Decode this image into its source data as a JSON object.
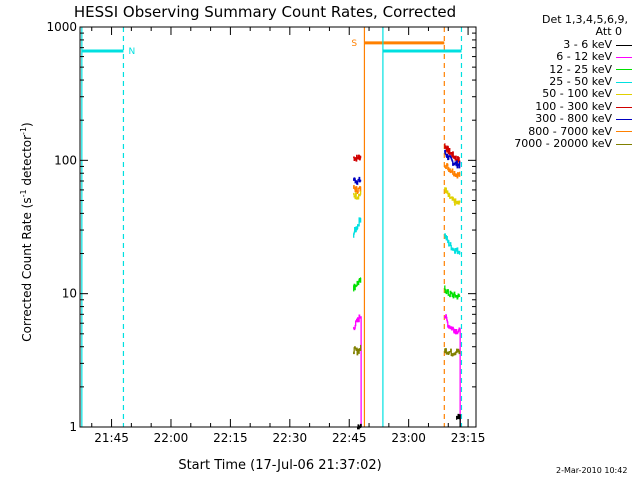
{
  "chart_data": {
    "type": "line",
    "title": "HESSI Observing Summary Count Rates, Corrected",
    "xlabel": "Start Time (17-Jul-06 21:37:02)",
    "ylabel": "Corrected Count Rate (s⁻¹ detector⁻¹)",
    "ylabel_parts": {
      "main": "Corrected Count Rate (s",
      "exp1": "-1",
      "mid": " detector",
      "exp2": "-1",
      "end": ")"
    },
    "x_scale": "time",
    "xlim": [
      "21:37:02",
      "23:17:00"
    ],
    "x_ticks": [
      "21:45",
      "22:00",
      "22:15",
      "22:30",
      "22:45",
      "23:00",
      "23:15"
    ],
    "y_scale": "log",
    "ylim": [
      1,
      1000
    ],
    "y_ticks": [
      "1",
      "10",
      "100",
      "1000"
    ],
    "legend": {
      "placement": "top-right, outside plot",
      "header": [
        "Det 1,3,4,5,6,9,",
        "Att 0"
      ],
      "entries": [
        {
          "label": "3 - 6 keV",
          "color": "#000000"
        },
        {
          "label": "6 - 12 keV",
          "color": "#ff00ff"
        },
        {
          "label": "12 - 25 keV",
          "color": "#00e000"
        },
        {
          "label": "25 - 50 keV",
          "color": "#00e0e0"
        },
        {
          "label": "50 - 100 keV",
          "color": "#e0d000"
        },
        {
          "label": "100 - 300 keV",
          "color": "#d00000"
        },
        {
          "label": "300 - 800 keV",
          "color": "#0000c0"
        },
        {
          "label": "800 - 7000 keV",
          "color": "#ff8000"
        },
        {
          "label": "7000 - 20000 keV",
          "color": "#808000"
        }
      ]
    },
    "series": [
      {
        "name": "100 - 300 keV",
        "color": "#d00000",
        "segments": [
          {
            "x": [
              "22:46",
              "22:47",
              "22:48"
            ],
            "y": [
              105,
              104,
              108
            ]
          },
          {
            "x": [
              "23:09",
              "23:10",
              "23:11",
              "23:12",
              "23:13"
            ],
            "y": [
              130,
              118,
              110,
              103,
              98
            ]
          }
        ]
      },
      {
        "name": "300 - 800 keV",
        "color": "#0000c0",
        "segments": [
          {
            "x": [
              "22:46",
              "22:47",
              "22:48"
            ],
            "y": [
              72,
              70,
              71
            ]
          },
          {
            "x": [
              "23:09",
              "23:10",
              "23:11",
              "23:12",
              "23:13"
            ],
            "y": [
              115,
              105,
              98,
              94,
              92
            ]
          }
        ]
      },
      {
        "name": "800 - 7000 keV",
        "color": "#ff8000",
        "segments": [
          {
            "x": [
              "22:46",
              "22:47",
              "22:48"
            ],
            "y": [
              62,
              60,
              61
            ]
          },
          {
            "x": [
              "23:09",
              "23:10",
              "23:11",
              "23:12",
              "23:13"
            ],
            "y": [
              95,
              88,
              83,
              79,
              77
            ]
          }
        ]
      },
      {
        "name": "50 - 100 keV",
        "color": "#e0d000",
        "segments": [
          {
            "x": [
              "22:46",
              "22:47",
              "22:48"
            ],
            "y": [
              55,
              54,
              56
            ]
          },
          {
            "x": [
              "23:09",
              "23:10",
              "23:11",
              "23:12",
              "23:13"
            ],
            "y": [
              62,
              54,
              50,
              48,
              47
            ]
          }
        ]
      },
      {
        "name": "25 - 50 keV",
        "color": "#00e0e0",
        "segments": [
          {
            "x": [
              "22:46",
              "22:47",
              "22:48"
            ],
            "y": [
              28,
              32,
              38
            ]
          },
          {
            "x": [
              "23:09",
              "23:10",
              "23:11",
              "23:12",
              "23:13"
            ],
            "y": [
              28,
              24,
              22,
              21,
              21
            ]
          }
        ]
      },
      {
        "name": "12 - 25 keV",
        "color": "#00e000",
        "segments": [
          {
            "x": [
              "22:46",
              "22:47",
              "22:48"
            ],
            "y": [
              11,
              12,
              12.5
            ]
          },
          {
            "x": [
              "23:09",
              "23:10",
              "23:11",
              "23:12",
              "23:13"
            ],
            "y": [
              11,
              10,
              9.8,
              9.6,
              9.5
            ]
          }
        ]
      },
      {
        "name": "6 - 12 keV",
        "color": "#ff00ff",
        "segments": [
          {
            "x": [
              "22:46",
              "22:47",
              "22:48"
            ],
            "y": [
              5.5,
              6.2,
              7
            ]
          },
          {
            "x": [
              "23:09",
              "23:10",
              "23:11",
              "23:12",
              "23:13"
            ],
            "y": [
              7,
              5.8,
              5.5,
              5.3,
              5.2
            ]
          }
        ]
      },
      {
        "name": "7000 - 20000 keV",
        "color": "#808000",
        "segments": [
          {
            "x": [
              "22:46",
              "22:47",
              "22:48"
            ],
            "y": [
              3.8,
              3.7,
              3.9
            ]
          },
          {
            "x": [
              "23:09",
              "23:10",
              "23:11",
              "23:12",
              "23:13"
            ],
            "y": [
              3.8,
              3.7,
              3.6,
              3.7,
              3.6
            ]
          }
        ]
      },
      {
        "name": "3 - 6 keV",
        "color": "#000000",
        "segments": [
          {
            "x": [
              "22:47",
              "22:48"
            ],
            "y": [
              1,
              1
            ]
          },
          {
            "x": [
              "23:12",
              "23:13"
            ],
            "y": [
              1.2,
              1.2
            ]
          }
        ]
      }
    ],
    "annotations": [
      {
        "type": "vline",
        "x": "21:37:30",
        "style": "solid",
        "color": "#00e0e0"
      },
      {
        "type": "vline",
        "x": "21:48:00",
        "style": "dashed",
        "color": "#00e0e0"
      },
      {
        "type": "hbar",
        "x": [
          "21:37:30",
          "21:48:00"
        ],
        "y": 660,
        "color": "#00e0e0",
        "label": "N"
      },
      {
        "type": "vline",
        "x": "22:48:50",
        "style": "solid",
        "color": "#ff8000"
      },
      {
        "type": "vline",
        "x": "23:09:00",
        "style": "dashed",
        "color": "#ff8000"
      },
      {
        "type": "hbar",
        "x": [
          "22:48:50",
          "23:09:00"
        ],
        "y": 760,
        "color": "#ff8000",
        "label": "S"
      },
      {
        "type": "vline",
        "x": "22:53:30",
        "style": "solid",
        "color": "#00e0e0"
      },
      {
        "type": "vline",
        "x": "23:13:20",
        "style": "dashed",
        "color": "#00e0e0"
      },
      {
        "type": "hbar",
        "x": [
          "22:53:30",
          "23:13:20"
        ],
        "y": 660,
        "color": "#00e0e0",
        "label": ""
      }
    ]
  },
  "footer": {
    "date_stamp": "2-Mar-2010 10:42"
  }
}
